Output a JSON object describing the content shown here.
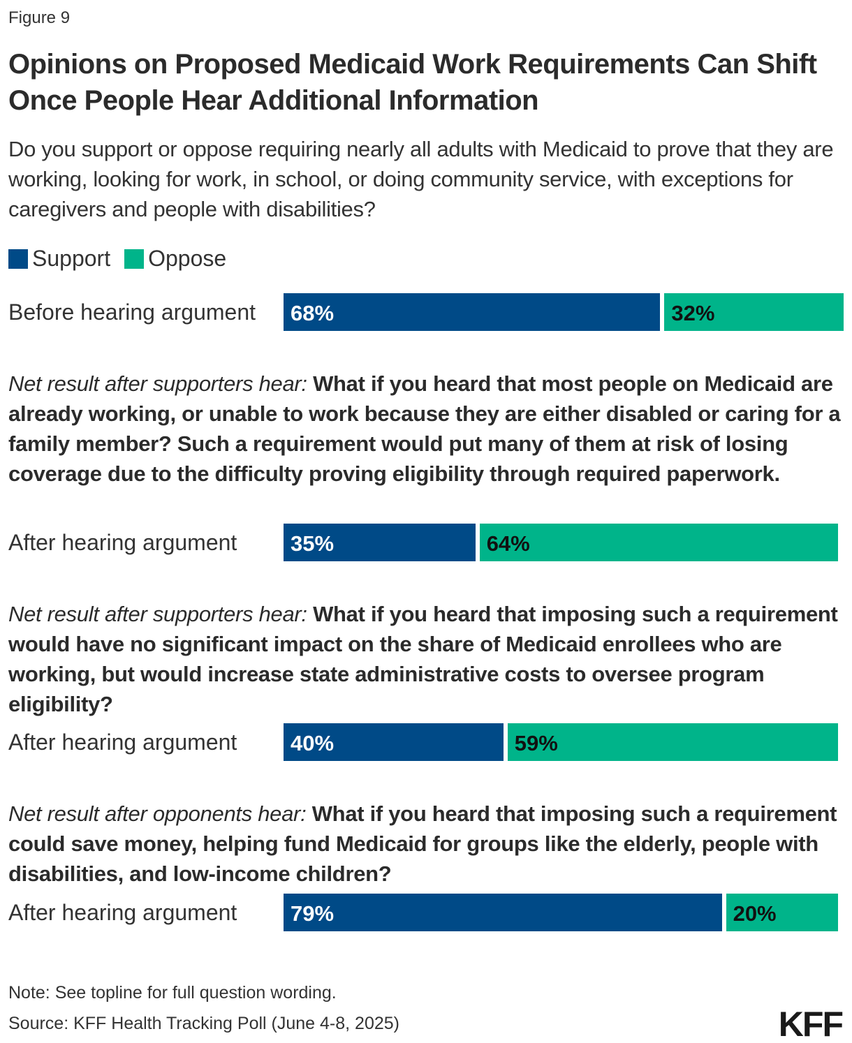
{
  "figure_label": "Figure 9",
  "title": "Opinions on Proposed Medicaid Work Requirements Can Shift Once People Hear Additional Information",
  "subtitle": "Do you support or oppose requiring nearly all adults with Medicaid to prove that they are working, looking for work, in school, or doing community service, with exceptions for caregivers and people with disabilities?",
  "colors": {
    "support": "#004A87",
    "oppose": "#00B48A"
  },
  "chart_data": {
    "type": "bar",
    "orientation": "horizontal-stacked",
    "legend": [
      {
        "name": "Support",
        "color": "#004A87"
      },
      {
        "name": "Oppose",
        "color": "#00B48A"
      }
    ],
    "legend_placement": "top-left",
    "groups": [
      {
        "prefix": "",
        "question": "",
        "label": "Before hearing argument",
        "support": 68,
        "oppose": 32,
        "support_label": "68%",
        "oppose_label": "32%"
      },
      {
        "prefix": "Net result after supporters hear:",
        "question": "What if you heard that most people on Medicaid are already working, or unable to work because they are either disabled or caring for a family member? Such a requirement would put many of them at risk of losing coverage due to the difficulty proving eligibility through required paperwork.",
        "label": "After hearing argument",
        "support": 35,
        "oppose": 64,
        "support_label": "35%",
        "oppose_label": "64%"
      },
      {
        "prefix": "Net result after supporters hear:",
        "question": "What if you heard that imposing such a requirement would have no significant impact on the share of Medicaid enrollees who are working, but would increase state administrative costs to oversee program eligibility?",
        "label": "After hearing argument",
        "support": 40,
        "oppose": 59,
        "support_label": "40%",
        "oppose_label": "59%"
      },
      {
        "prefix": "Net result after opponents hear:",
        "question": "What if you heard that imposing such a requirement could save money, helping fund Medicaid for groups like the elderly, people with disabilities, and low-income children?",
        "label": "After hearing argument",
        "support": 79,
        "oppose": 20,
        "support_label": "79%",
        "oppose_label": "20%"
      }
    ]
  },
  "note": "Note: See topline for full question wording.",
  "source": "Source: KFF Health Tracking Poll (June 4-8, 2025)",
  "logo": "KFF"
}
